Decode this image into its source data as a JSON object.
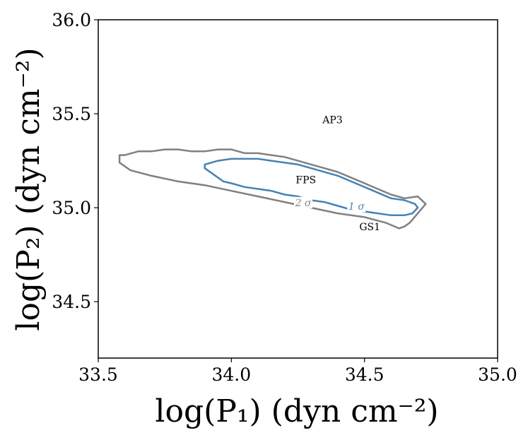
{
  "chart_data": {
    "type": "contour",
    "xlabel": "log(P₁) (dyn cm⁻²)",
    "ylabel": "log(P₂) (dyn cm⁻²)",
    "xlim": [
      33.5,
      35.0
    ],
    "ylim": [
      34.2,
      36.0
    ],
    "x_ticks": [
      "33.5",
      "34.0",
      "34.5",
      "35.0"
    ],
    "y_ticks": [
      "34.5",
      "35.0",
      "35.5",
      "36.0"
    ],
    "grid": false,
    "series": [
      {
        "name": "2 σ",
        "color": "#808080",
        "points": [
          [
            33.58,
            35.28
          ],
          [
            33.6,
            35.28
          ],
          [
            33.65,
            35.3
          ],
          [
            33.7,
            35.3
          ],
          [
            33.75,
            35.31
          ],
          [
            33.8,
            35.31
          ],
          [
            33.85,
            35.3
          ],
          [
            33.9,
            35.3
          ],
          [
            33.95,
            35.31
          ],
          [
            34.0,
            35.31
          ],
          [
            34.05,
            35.29
          ],
          [
            34.1,
            35.29
          ],
          [
            34.15,
            35.28
          ],
          [
            34.2,
            35.27
          ],
          [
            34.25,
            35.25
          ],
          [
            34.3,
            35.23
          ],
          [
            34.35,
            35.21
          ],
          [
            34.4,
            35.19
          ],
          [
            34.45,
            35.16
          ],
          [
            34.5,
            35.13
          ],
          [
            34.55,
            35.1
          ],
          [
            34.6,
            35.07
          ],
          [
            34.65,
            35.05
          ],
          [
            34.7,
            35.06
          ],
          [
            34.73,
            35.02
          ],
          [
            34.7,
            34.97
          ],
          [
            34.67,
            34.92
          ],
          [
            34.65,
            34.9
          ],
          [
            34.63,
            34.89
          ],
          [
            34.58,
            34.92
          ],
          [
            34.5,
            34.95
          ],
          [
            34.4,
            34.97
          ],
          [
            34.3,
            35.0
          ],
          [
            34.2,
            35.03
          ],
          [
            34.1,
            35.06
          ],
          [
            34.0,
            35.09
          ],
          [
            33.9,
            35.12
          ],
          [
            33.8,
            35.14
          ],
          [
            33.7,
            35.17
          ],
          [
            33.62,
            35.2
          ],
          [
            33.58,
            35.24
          ]
        ]
      },
      {
        "name": "1 σ",
        "color": "#4682b4",
        "points": [
          [
            33.9,
            35.23
          ],
          [
            33.95,
            35.25
          ],
          [
            34.0,
            35.26
          ],
          [
            34.05,
            35.26
          ],
          [
            34.1,
            35.26
          ],
          [
            34.15,
            35.25
          ],
          [
            34.2,
            35.24
          ],
          [
            34.25,
            35.23
          ],
          [
            34.3,
            35.21
          ],
          [
            34.35,
            35.19
          ],
          [
            34.4,
            35.17
          ],
          [
            34.45,
            35.14
          ],
          [
            34.5,
            35.11
          ],
          [
            34.55,
            35.08
          ],
          [
            34.6,
            35.05
          ],
          [
            34.65,
            35.04
          ],
          [
            34.69,
            35.02
          ],
          [
            34.7,
            35.0
          ],
          [
            34.68,
            34.97
          ],
          [
            34.65,
            34.96
          ],
          [
            34.6,
            34.96
          ],
          [
            34.55,
            34.97
          ],
          [
            34.5,
            34.98
          ],
          [
            34.45,
            34.99
          ],
          [
            34.4,
            35.01
          ],
          [
            34.35,
            35.03
          ],
          [
            34.3,
            35.04
          ],
          [
            34.25,
            35.06
          ],
          [
            34.2,
            35.07
          ],
          [
            34.15,
            35.09
          ],
          [
            34.1,
            35.1
          ],
          [
            34.05,
            35.11
          ],
          [
            34.0,
            35.13
          ],
          [
            33.97,
            35.14
          ],
          [
            33.93,
            35.18
          ],
          [
            33.9,
            35.21
          ]
        ]
      }
    ],
    "contour_labels": [
      {
        "text": "2 σ",
        "x": 34.27,
        "y": 35.02,
        "color": "#808080"
      },
      {
        "text": "1 σ",
        "x": 34.47,
        "y": 35.0,
        "color": "#4682b4"
      }
    ],
    "annotations": [
      {
        "text": "AP3",
        "x": 34.38,
        "y": 35.45
      },
      {
        "text": "FPS",
        "x": 34.28,
        "y": 35.13
      },
      {
        "text": "GS1",
        "x": 34.52,
        "y": 34.88
      }
    ]
  }
}
